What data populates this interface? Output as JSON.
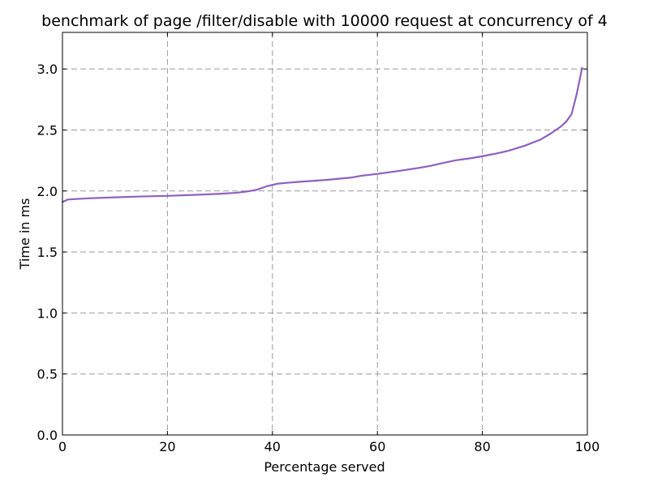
{
  "chart_data": {
    "type": "line",
    "title": "benchmark of page /filter/disable with 10000 request at concurrency of 4",
    "xlabel": "Percentage served",
    "ylabel": "Time in ms",
    "xlim": [
      0,
      100
    ],
    "ylim": [
      0,
      3.3
    ],
    "xticks": [
      0,
      20,
      40,
      60,
      80,
      100
    ],
    "xtick_labels": [
      "0",
      "20",
      "40",
      "60",
      "80",
      "100"
    ],
    "yticks": [
      0,
      0.5,
      1.0,
      1.5,
      2.0,
      2.5,
      3.0
    ],
    "ytick_labels": [
      "0.0",
      "0.5",
      "1.0",
      "1.5",
      "2.0",
      "2.5",
      "3.0"
    ],
    "grid": true,
    "legend": "none",
    "series": [
      {
        "color": "#8f5fbf",
        "x": [
          0,
          1,
          3,
          5,
          8,
          10,
          15,
          20,
          25,
          30,
          33,
          35,
          37,
          39,
          41,
          43,
          45,
          50,
          55,
          57,
          60,
          65,
          68,
          70,
          72,
          75,
          78,
          80,
          83,
          85,
          88,
          91,
          93,
          95,
          96,
          97,
          98,
          99
        ],
        "y": [
          1.91,
          1.93,
          1.935,
          1.94,
          1.945,
          1.948,
          1.955,
          1.96,
          1.968,
          1.977,
          1.985,
          1.995,
          2.01,
          2.04,
          2.06,
          2.068,
          2.075,
          2.09,
          2.11,
          2.125,
          2.14,
          2.17,
          2.19,
          2.205,
          2.225,
          2.252,
          2.27,
          2.285,
          2.31,
          2.33,
          2.37,
          2.42,
          2.47,
          2.53,
          2.57,
          2.63,
          2.8,
          3.01
        ]
      }
    ]
  }
}
